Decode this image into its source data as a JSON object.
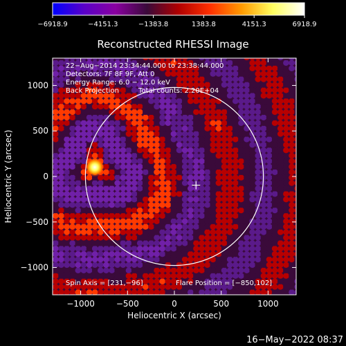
{
  "chart_data": {
    "type": "heatmap",
    "title": "Reconstructed RHESSI Image",
    "xlabel": "Heliocentric X (arcsec)",
    "ylabel": "Heliocentric Y (arcsec)",
    "xlim": [
      -1300,
      1300
    ],
    "ylim": [
      -1300,
      1300
    ],
    "xticks": [
      -1000,
      -500,
      0,
      500,
      1000
    ],
    "yticks": [
      -1000,
      -500,
      0,
      500,
      1000
    ],
    "xtick_labels": [
      "−1000",
      "−500",
      "0",
      "500",
      "1000"
    ],
    "ytick_labels": [
      "−1000",
      "−500",
      "0",
      "500",
      "1000"
    ],
    "colorbar": {
      "min": -6918.9,
      "max": 6918.9,
      "ticks": [
        -6918.9,
        -4151.3,
        -1383.8,
        1383.8,
        4151.3,
        6918.9
      ],
      "tick_labels": [
        "−6918.9",
        "−4151.3",
        "−1383.8",
        "1383.8",
        "4151.3",
        "6918.9"
      ],
      "colors": [
        "#0000ff",
        "#5a00c8",
        "#8a00a0",
        "#3a0a3a",
        "#b00000",
        "#ff3000",
        "#ff9a00",
        "#ffff60",
        "#ffffff"
      ]
    },
    "annotations": [
      "22−Aug−2014 23:34:44.000 to 23:38:44.000",
      "Detectors: 7F 8F 9F, Att 0",
      "Energy Range: 6.0 − 12.0 keV",
      "Back Projection",
      "Total counts: 2.20E+04"
    ],
    "spin_axis_label": "Spin Axis = [231,−96]",
    "flare_position_label": "Flare Position = [−850,102]",
    "spin_axis": [
      231,
      -96
    ],
    "flare_position": [
      -850,
      102
    ],
    "flare_source_peak": 6918.9,
    "solar_limb_radius": 950,
    "solar_limb_center": [
      0,
      0
    ],
    "timestamp": "16−May−2022 08:37"
  }
}
